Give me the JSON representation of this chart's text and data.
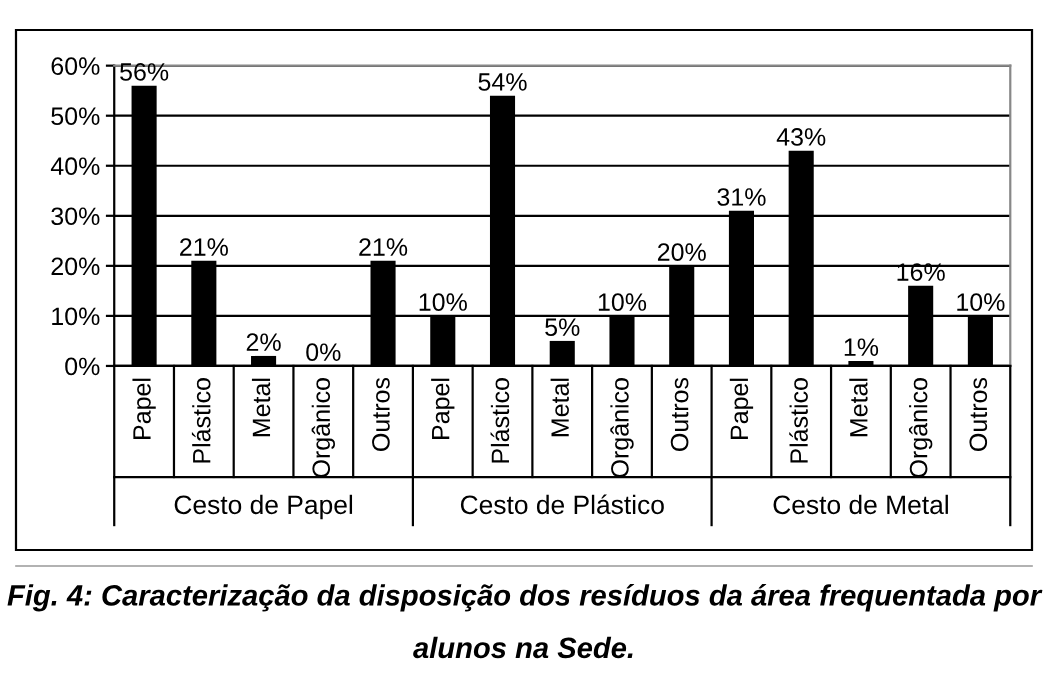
{
  "chart_data": {
    "type": "bar",
    "categories": [
      "Papel",
      "Plástico",
      "Metal",
      "Orgânico",
      "Outros",
      "Papel",
      "Plástico",
      "Metal",
      "Orgânico",
      "Outros",
      "Papel",
      "Plástico",
      "Metal",
      "Orgânico",
      "Outros"
    ],
    "values": [
      56,
      21,
      2,
      0,
      21,
      10,
      54,
      5,
      10,
      20,
      31,
      43,
      1,
      16,
      10
    ],
    "value_labels": [
      "56%",
      "21%",
      "2%",
      "0%",
      "21%",
      "10%",
      "54%",
      "5%",
      "10%",
      "20%",
      "31%",
      "43%",
      "1%",
      "16%",
      "10%"
    ],
    "color": "#000000",
    "ylim": [
      0,
      60
    ],
    "yticks": [
      {
        "value": 0,
        "label": "0%"
      },
      {
        "value": 10,
        "label": "10%"
      },
      {
        "value": 20,
        "label": "20%"
      },
      {
        "value": 30,
        "label": "30%"
      },
      {
        "value": 40,
        "label": "40%"
      },
      {
        "value": 50,
        "label": "50%"
      },
      {
        "value": 60,
        "label": "60%"
      }
    ],
    "grid": "y",
    "annotations": [
      "Cesto de Papel",
      "Cesto de Plástico",
      "Cesto de Metal",
      "Fig. 4: Caracterização da disposição dos resíduos da área frequentada por alunos na Sede."
    ]
  }
}
